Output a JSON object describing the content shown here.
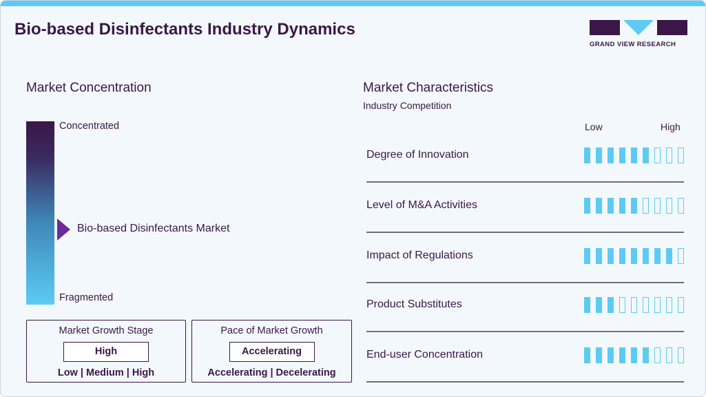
{
  "header": {
    "title": "Bio-based Disinfectants Industry Dynamics",
    "logo_text": "GRAND VIEW RESEARCH"
  },
  "colors": {
    "accent": "#5ccbf4",
    "brand": "#3a1748",
    "marker": "#6a2a9a"
  },
  "concentration": {
    "heading": "Market Concentration",
    "top_label": "Concentrated",
    "bottom_label": "Fragmented",
    "marker_label": "Bio-based Disinfectants Market",
    "marker_level": 0.42
  },
  "growth_stage": {
    "title": "Market Growth Stage",
    "value": "High",
    "options": "Low | Medium | High"
  },
  "pace": {
    "title": "Pace of Market Growth",
    "value": "Accelerating",
    "options": "Accelerating | Decelerating"
  },
  "characteristics": {
    "heading": "Market Characteristics",
    "subheading": "Industry Competition",
    "scale_low": "Low",
    "scale_high": "High",
    "scale_max": 9,
    "rows": [
      {
        "label": "Degree of Innovation",
        "rating": 6
      },
      {
        "label": "Level of M&A Activities",
        "rating": 5
      },
      {
        "label": "Impact of Regulations",
        "rating": 8
      },
      {
        "label": "Product Substitutes",
        "rating": 3
      },
      {
        "label": "End-user Concentration",
        "rating": 6
      }
    ]
  }
}
